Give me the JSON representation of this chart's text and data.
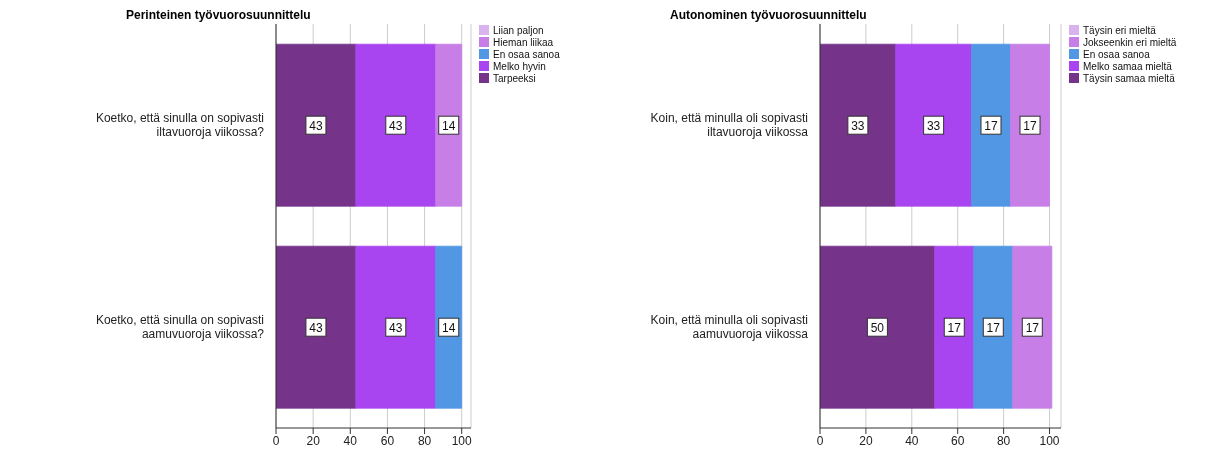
{
  "chart_data": [
    {
      "type": "bar",
      "title": "Perinteinen työvuorosuunnittelu",
      "orientation": "horizontal",
      "stacked": true,
      "categories": [
        "Koetko, että sinulla on sopivasti iltavuoroja viikossa?",
        "Koetko, että sinulla on sopivasti aamuvuoroja viikossa?"
      ],
      "series": [
        {
          "name": "Tarpeeksi",
          "color": "#76338a",
          "values": [
            43,
            43
          ]
        },
        {
          "name": "Melko hyvin",
          "color": "#a945f0",
          "values": [
            43,
            43
          ]
        },
        {
          "name": "En osaa sanoa",
          "color": "#5297e4",
          "values": [
            null,
            14
          ]
        },
        {
          "name": "Hieman liikaa",
          "color": "#c77ee6",
          "values": [
            14,
            null
          ]
        },
        {
          "name": "Liian paljon",
          "color": "#d9b3ee",
          "values": [
            null,
            null
          ]
        }
      ],
      "xlim": [
        0,
        105
      ],
      "xticks": [
        0,
        20,
        40,
        60,
        80,
        100
      ],
      "data_labels": true,
      "legend": "top right",
      "grid": "x"
    },
    {
      "type": "bar",
      "title": "Autonominen työvuorosuunnittelu",
      "orientation": "horizontal",
      "stacked": true,
      "categories": [
        "Koin, että minulla oli sopivasti iltavuoroja viikossa",
        "Koin, että minulla oli sopivasti aamuvuoroja viikossa"
      ],
      "series": [
        {
          "name": "Täysin samaa mieltä",
          "color": "#76338a",
          "values": [
            33,
            50
          ]
        },
        {
          "name": "Melko samaa mieltä",
          "color": "#a945f0",
          "values": [
            33,
            17
          ]
        },
        {
          "name": "En osaa sanoa",
          "color": "#5297e4",
          "values": [
            17,
            17
          ]
        },
        {
          "name": "Jokseenkin eri mieltä",
          "color": "#c77ee6",
          "values": [
            17,
            17
          ]
        },
        {
          "name": "Täysin eri mieltä",
          "color": "#d9b3ee",
          "values": [
            null,
            null
          ]
        }
      ],
      "xlim": [
        0,
        105
      ],
      "xticks": [
        0,
        20,
        40,
        60,
        80,
        100
      ],
      "data_labels": true,
      "legend": "top right",
      "grid": "x"
    }
  ]
}
